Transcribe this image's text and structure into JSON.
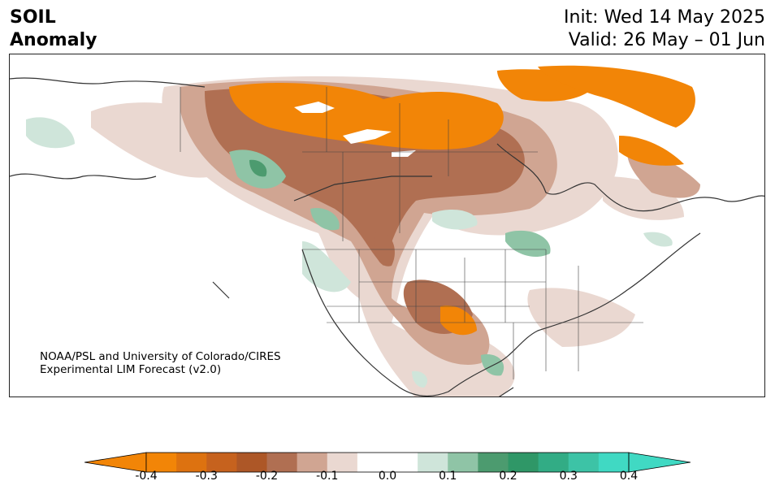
{
  "header": {
    "variable_line1": "SOIL",
    "variable_line2": "Anomaly",
    "init_text": "Init: Wed 14 May 2025",
    "valid_text": "Valid: 26 May – 01 Jun"
  },
  "credit": {
    "line1": "NOAA/PSL and University of Colorado/CIRES",
    "line2": "Experimental LIM Forecast (v2.0)"
  },
  "colorbar": {
    "ticks": [
      "-0.4",
      "-0.3",
      "-0.2",
      "-0.1",
      "0.0",
      "0.1",
      "0.2",
      "0.3",
      "0.4"
    ],
    "colors": [
      "#f28507",
      "#dd7210",
      "#c6621e",
      "#ad5727",
      "#b06f52",
      "#d0a592",
      "#ead8d1",
      "#ffffff",
      "#ffffff",
      "#cfe5da",
      "#8fc4a6",
      "#4c9b6f",
      "#2f9767",
      "#32ac85",
      "#3dc3a6",
      "#40d9c3"
    ],
    "extend_low_color": "#f28507",
    "extend_high_color": "#40d9c3"
  }
}
